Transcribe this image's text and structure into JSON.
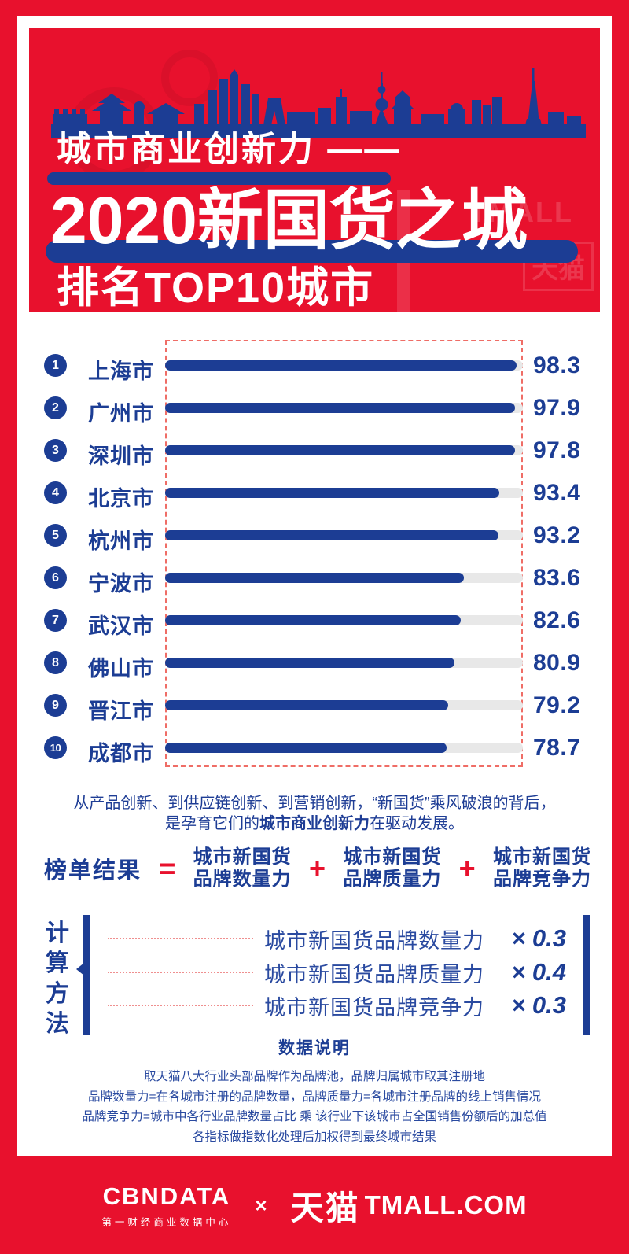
{
  "colors": {
    "red": "#e8112d",
    "navy": "#1c3d94",
    "track_gray": "#e8e8e8",
    "dashed_border": "#ef6d66"
  },
  "header": {
    "kicker": "城市商业创新力 ——",
    "title": "2020新国货之城",
    "subtitle": "排名TOP10城市",
    "watermark_tmall": "TMALL",
    "watermark_tianmao": "天猫"
  },
  "chart_data": {
    "type": "bar",
    "title": "2020新国货之城 排名TOP10城市",
    "xlabel": "",
    "ylabel": "",
    "xlim": [
      0,
      100
    ],
    "grid": false,
    "categories": [
      "上海市",
      "广州市",
      "深圳市",
      "北京市",
      "杭州市",
      "宁波市",
      "武汉市",
      "佛山市",
      "晋江市",
      "成都市"
    ],
    "values": [
      98.3,
      97.9,
      97.8,
      93.4,
      93.2,
      83.6,
      82.6,
      80.9,
      79.2,
      78.7
    ],
    "rows": [
      {
        "rank": "1",
        "city": "上海市",
        "value": 98.3
      },
      {
        "rank": "2",
        "city": "广州市",
        "value": 97.9
      },
      {
        "rank": "3",
        "city": "深圳市",
        "value": 97.8
      },
      {
        "rank": "4",
        "city": "北京市",
        "value": 93.4
      },
      {
        "rank": "5",
        "city": "杭州市",
        "value": 93.2
      },
      {
        "rank": "6",
        "city": "宁波市",
        "value": 83.6
      },
      {
        "rank": "7",
        "city": "武汉市",
        "value": 82.6
      },
      {
        "rank": "8",
        "city": "佛山市",
        "value": 80.9
      },
      {
        "rank": "9",
        "city": "晋江市",
        "value": 79.2
      },
      {
        "rank": "10",
        "city": "成都市",
        "value": 78.7
      }
    ]
  },
  "summary": {
    "line1": "从产品创新、到供应链创新、到营销创新，“新国货”乘风破浪的背后，",
    "line2_prefix": "是孕育它们的",
    "line2_bold": "城市商业创新力",
    "line2_suffix": "在驱动发展。"
  },
  "formula": {
    "result_label": "榜单结果",
    "equals": "=",
    "plus": "+",
    "terms": [
      {
        "line1": "城市新国货",
        "line2": "品牌数量力"
      },
      {
        "line1": "城市新国货",
        "line2": "品牌质量力"
      },
      {
        "line1": "城市新国货",
        "line2": "品牌竞争力"
      }
    ]
  },
  "method": {
    "chars": [
      "计",
      "算",
      "方",
      "法"
    ],
    "rows": [
      {
        "label": "城市新国货品牌数量力",
        "weight": "× 0.3"
      },
      {
        "label": "城市新国货品牌质量力",
        "weight": "× 0.4"
      },
      {
        "label": "城市新国货品牌竞争力",
        "weight": "× 0.3"
      }
    ]
  },
  "notes": {
    "title": "数据说明",
    "lines": [
      "取天猫八大行业头部品牌作为品牌池，品牌归属城市取其注册地",
      "品牌数量力=在各城市注册的品牌数量，品牌质量力=各城市注册品牌的线上销售情况",
      "品牌竞争力=城市中各行业品牌数量占比 乘 该行业下该城市占全国销售份额后的加总值",
      "各指标做指数化处理后加权得到最终城市结果"
    ]
  },
  "footer": {
    "cbndata": "CBNDATA",
    "cbndata_sub": "第一财经商业数据中心",
    "separator": "×",
    "tmall_cn": "天猫",
    "tmall_en": "TMALL.COM"
  }
}
